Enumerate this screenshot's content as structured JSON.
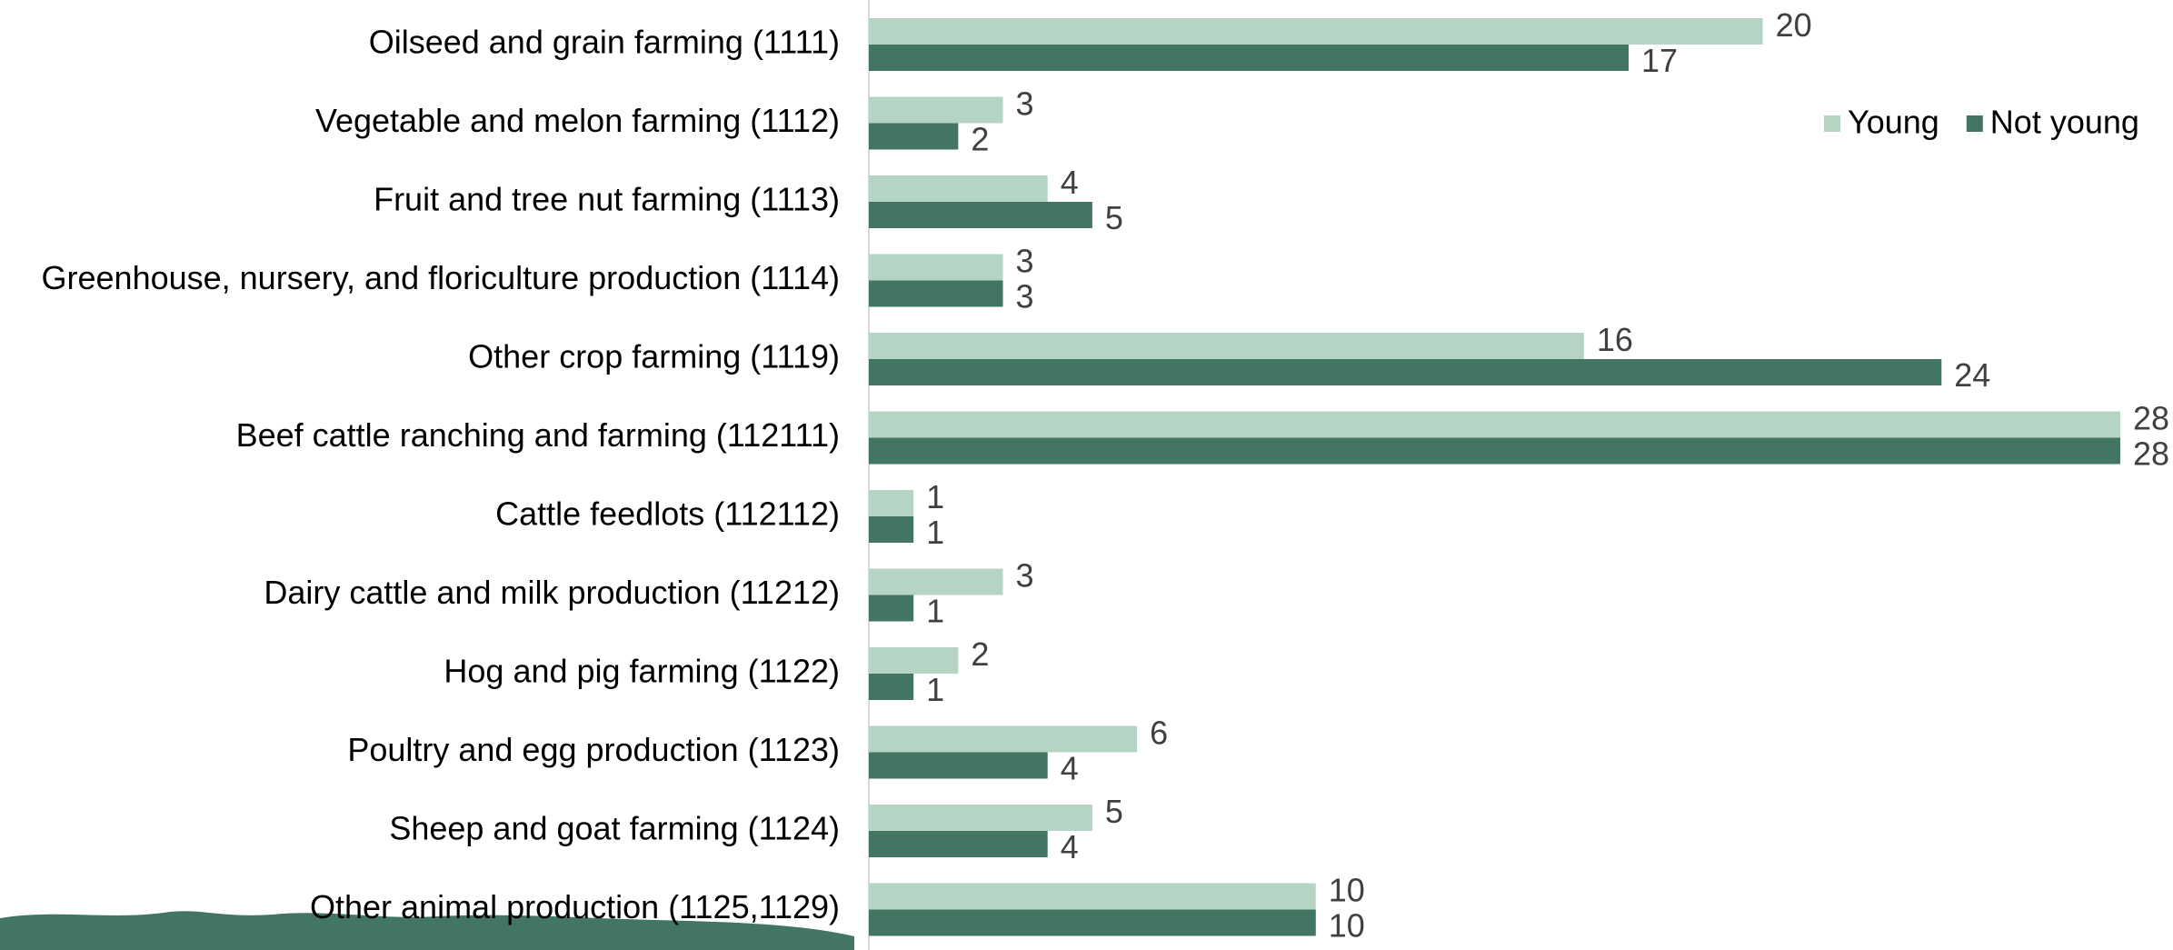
{
  "chart_data": {
    "type": "bar",
    "orientation": "horizontal",
    "categories": [
      "Oilseed and grain farming (1111)",
      "Vegetable and melon farming (1112)",
      "Fruit and tree nut farming (1113)",
      "Greenhouse, nursery, and floriculture production (1114)",
      "Other crop farming (1119)",
      "Beef cattle ranching and farming (112111)",
      "Cattle feedlots (112112)",
      "Dairy cattle and milk production (11212)",
      "Hog and pig farming (1122)",
      "Poultry and egg production (1123)",
      "Sheep and goat farming (1124)",
      "Other animal production (1125,1129)"
    ],
    "series": [
      {
        "name": "Young",
        "color": "#b6d4c4",
        "values": [
          20,
          3,
          4,
          3,
          16,
          28,
          1,
          3,
          2,
          6,
          5,
          10
        ]
      },
      {
        "name": "Not young",
        "color": "#427663",
        "values": [
          17,
          2,
          5,
          3,
          24,
          28,
          1,
          1,
          1,
          4,
          4,
          10
        ]
      }
    ],
    "legend": "top-right"
  }
}
